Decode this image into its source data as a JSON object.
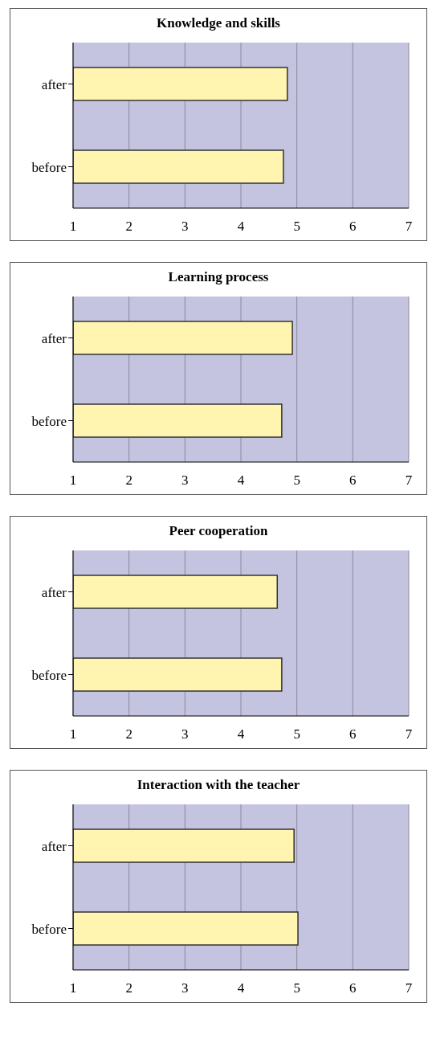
{
  "chart_data": [
    {
      "type": "bar",
      "orientation": "horizontal",
      "title": "Knowledge and skills",
      "categories": [
        "after",
        "before"
      ],
      "values": [
        4.83,
        4.76
      ],
      "color": "#fff5b0",
      "xlim": [
        1,
        7
      ],
      "xticks": [
        1,
        2,
        3,
        4,
        5,
        6,
        7
      ],
      "grid": "x"
    },
    {
      "type": "bar",
      "orientation": "horizontal",
      "title": "Learning process",
      "categories": [
        "after",
        "before"
      ],
      "values": [
        4.92,
        4.73
      ],
      "color": "#fff5b0",
      "xlim": [
        1,
        7
      ],
      "xticks": [
        1,
        2,
        3,
        4,
        5,
        6,
        7
      ],
      "grid": "x"
    },
    {
      "type": "bar",
      "orientation": "horizontal",
      "title": "Peer cooperation",
      "categories": [
        "after",
        "before"
      ],
      "values": [
        4.65,
        4.73
      ],
      "color": "#fff5b0",
      "xlim": [
        1,
        7
      ],
      "xticks": [
        1,
        2,
        3,
        4,
        5,
        6,
        7
      ],
      "grid": "x"
    },
    {
      "type": "bar",
      "orientation": "horizontal",
      "title": "Interaction with the teacher",
      "categories": [
        "after",
        "before"
      ],
      "values": [
        4.95,
        5.02
      ],
      "color": "#fff5b0",
      "xlim": [
        1,
        7
      ],
      "xticks": [
        1,
        2,
        3,
        4,
        5,
        6,
        7
      ],
      "grid": "x"
    }
  ]
}
